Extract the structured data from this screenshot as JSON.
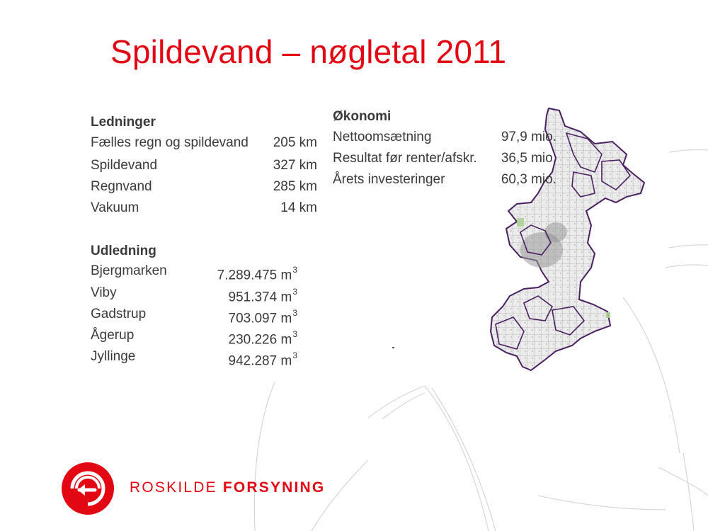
{
  "slide": {
    "title": "Spildevand – nøgletal 2011"
  },
  "ledninger": {
    "heading": "Ledninger",
    "rows": [
      {
        "label": "Fælles regn og spildevand",
        "value": "205 km"
      },
      {
        "label": "Spildevand",
        "value": "327 km"
      },
      {
        "label": "Regnvand",
        "value": "285 km"
      },
      {
        "label": "Vakuum",
        "value": "14 km"
      }
    ]
  },
  "udledning": {
    "heading": "Udledning",
    "unit": "m",
    "unit_exp": "3",
    "rows": [
      {
        "label": "Bjergmarken",
        "value": "7.289.475"
      },
      {
        "label": "Viby",
        "value": "951.374"
      },
      {
        "label": "Gadstrup",
        "value": "703.097"
      },
      {
        "label": "Ågerup",
        "value": "230.226"
      },
      {
        "label": "Jyllinge",
        "value": "942.287"
      }
    ]
  },
  "okonomi": {
    "heading": "Økonomi",
    "rows": [
      {
        "label": "Nettoomsætning",
        "value": "97,9 mio."
      },
      {
        "label": "Resultat før renter/afskr.",
        "value": "36,5 mio."
      },
      {
        "label": "Årets investeringer",
        "value": "60,3 mio."
      }
    ]
  },
  "logo": {
    "word1": "ROSKILDE",
    "word2": "FORSYNING",
    "color": "#e30613"
  },
  "colors": {
    "title": "#e30613",
    "text": "#3a3a3a",
    "map_border": "#4a2060"
  },
  "icons": {
    "logo": "roskilde-forsyning-logo-icon",
    "map": "municipality-map-icon"
  }
}
